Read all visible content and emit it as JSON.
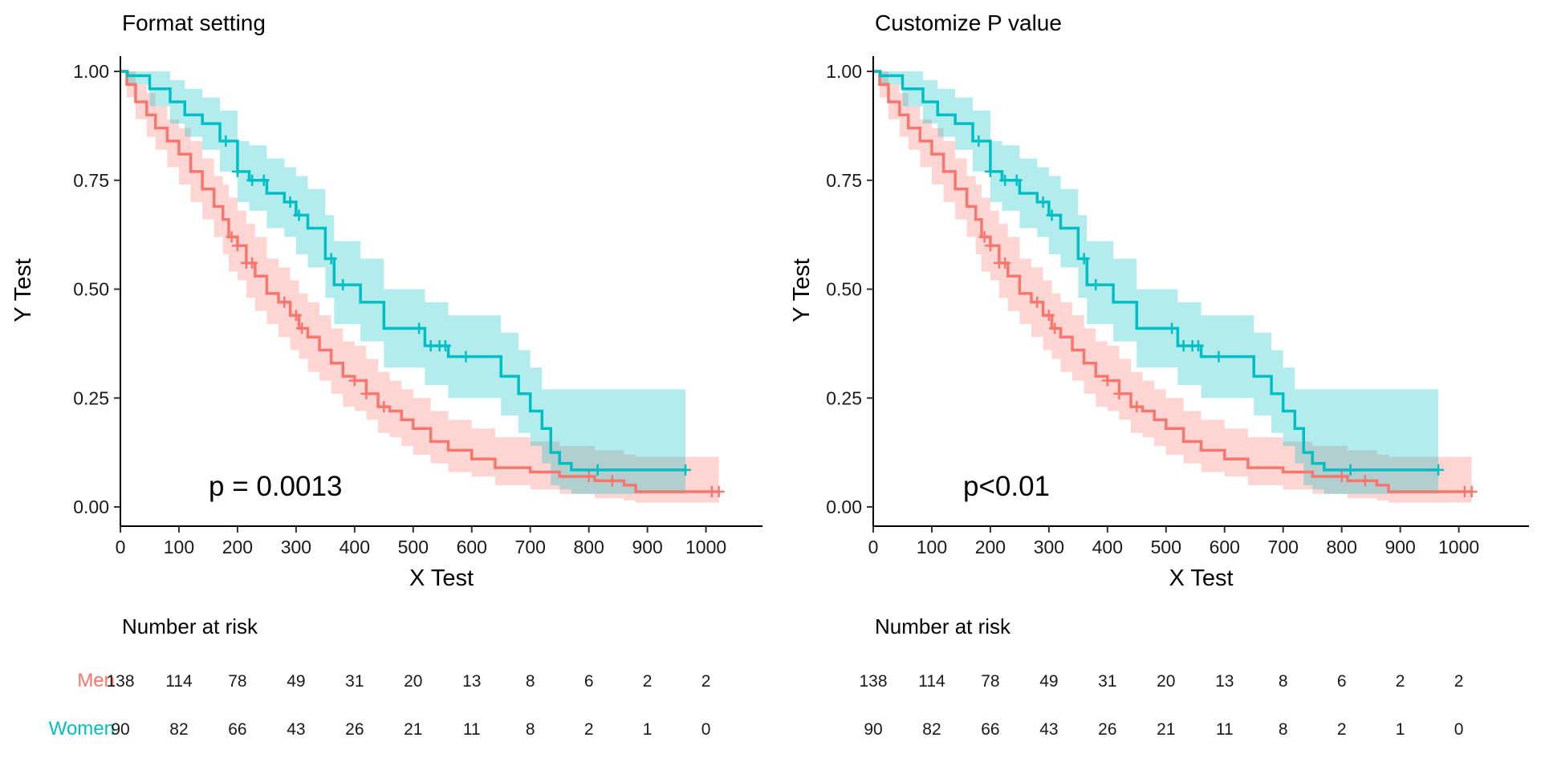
{
  "chart_data": [
    {
      "type": "line",
      "subtype": "kaplan-meier survival curve with confidence bands",
      "title": "Format setting",
      "xlabel": "X Test",
      "ylabel": "Y Test",
      "xlim": [
        -50,
        1050
      ],
      "ylim": [
        -0.05,
        1.05
      ],
      "x_ticks": [
        "0",
        "100",
        "200",
        "300",
        "400",
        "500",
        "600",
        "700",
        "800",
        "900",
        "1000"
      ],
      "y_ticks": [
        "0.00",
        "0.25",
        "0.50",
        "0.75",
        "1.00"
      ],
      "annotation": "p = 0.0013",
      "series": [
        {
          "name": "Men",
          "color": "#F8766D",
          "x": [
            0,
            11,
            26,
            45,
            60,
            80,
            100,
            120,
            140,
            160,
            175,
            185,
            200,
            215,
            230,
            250,
            270,
            290,
            305,
            320,
            340,
            360,
            380,
            400,
            420,
            440,
            460,
            480,
            500,
            530,
            560,
            600,
            640,
            700,
            750,
            810,
            860,
            880,
            1022
          ],
          "y": [
            1.0,
            0.97,
            0.93,
            0.9,
            0.87,
            0.84,
            0.81,
            0.77,
            0.73,
            0.69,
            0.66,
            0.62,
            0.6,
            0.56,
            0.53,
            0.49,
            0.47,
            0.44,
            0.41,
            0.39,
            0.36,
            0.33,
            0.3,
            0.29,
            0.26,
            0.23,
            0.22,
            0.2,
            0.18,
            0.15,
            0.13,
            0.11,
            0.09,
            0.08,
            0.07,
            0.06,
            0.05,
            0.035,
            0.035
          ],
          "lower": [
            1.0,
            0.94,
            0.89,
            0.85,
            0.82,
            0.78,
            0.74,
            0.7,
            0.66,
            0.62,
            0.58,
            0.54,
            0.52,
            0.48,
            0.45,
            0.42,
            0.39,
            0.36,
            0.34,
            0.31,
            0.29,
            0.26,
            0.23,
            0.22,
            0.2,
            0.17,
            0.16,
            0.14,
            0.12,
            0.1,
            0.08,
            0.07,
            0.05,
            0.04,
            0.03,
            0.02,
            0.015,
            0.01,
            0.01
          ],
          "upper": [
            1.0,
            1.0,
            0.97,
            0.95,
            0.92,
            0.89,
            0.87,
            0.84,
            0.8,
            0.76,
            0.74,
            0.71,
            0.68,
            0.65,
            0.62,
            0.57,
            0.55,
            0.52,
            0.49,
            0.47,
            0.44,
            0.41,
            0.38,
            0.37,
            0.34,
            0.31,
            0.29,
            0.27,
            0.25,
            0.22,
            0.2,
            0.18,
            0.16,
            0.15,
            0.14,
            0.13,
            0.12,
            0.115,
            0.115
          ],
          "censor_x": [
            190,
            200,
            215,
            225,
            280,
            300,
            310,
            400,
            420,
            450,
            800,
            840,
            1010,
            1022
          ]
        },
        {
          "name": "Women",
          "color": "#00BFC4",
          "x": [
            0,
            12,
            50,
            85,
            110,
            140,
            170,
            200,
            220,
            250,
            280,
            300,
            320,
            350,
            365,
            410,
            450,
            520,
            560,
            650,
            680,
            700,
            720,
            735,
            750,
            770,
            965
          ],
          "y": [
            1.0,
            0.99,
            0.96,
            0.93,
            0.9,
            0.88,
            0.84,
            0.77,
            0.75,
            0.72,
            0.7,
            0.67,
            0.64,
            0.57,
            0.51,
            0.47,
            0.41,
            0.37,
            0.345,
            0.3,
            0.26,
            0.22,
            0.18,
            0.125,
            0.1,
            0.085,
            0.085
          ],
          "lower": [
            1.0,
            0.97,
            0.92,
            0.88,
            0.85,
            0.82,
            0.77,
            0.7,
            0.68,
            0.64,
            0.62,
            0.58,
            0.55,
            0.48,
            0.42,
            0.38,
            0.32,
            0.28,
            0.25,
            0.21,
            0.17,
            0.14,
            0.1,
            0.05,
            0.04,
            0.03,
            0.03
          ],
          "upper": [
            1.0,
            1.0,
            1.0,
            0.98,
            0.96,
            0.94,
            0.91,
            0.84,
            0.83,
            0.8,
            0.78,
            0.76,
            0.73,
            0.67,
            0.61,
            0.57,
            0.5,
            0.47,
            0.44,
            0.4,
            0.36,
            0.32,
            0.27,
            0.27,
            0.27,
            0.27,
            0.27
          ],
          "censor_x": [
            180,
            200,
            225,
            245,
            290,
            305,
            360,
            380,
            510,
            530,
            545,
            555,
            590,
            815,
            965
          ]
        }
      ]
    },
    {
      "type": "line",
      "subtype": "kaplan-meier survival curve with confidence bands",
      "title": "Customize P value",
      "xlabel": "X Test",
      "ylabel": "Y Test",
      "xlim": [
        -50,
        1050
      ],
      "ylim": [
        -0.05,
        1.05
      ],
      "x_ticks": [
        "0",
        "100",
        "200",
        "300",
        "400",
        "500",
        "600",
        "700",
        "800",
        "900",
        "1000"
      ],
      "y_ticks": [
        "0.00",
        "0.25",
        "0.50",
        "0.75",
        "1.00"
      ],
      "annotation": "p<0.01",
      "same_data_as_chart": 0
    }
  ],
  "risk_tables": [
    {
      "title": "Number at risk",
      "groups": [
        {
          "name": "Men",
          "color": "#F8766D",
          "values": [
            "138",
            "114",
            "78",
            "49",
            "31",
            "20",
            "13",
            "8",
            "6",
            "2",
            "2"
          ]
        },
        {
          "name": "Women",
          "color": "#00BFC4",
          "values": [
            "90",
            "82",
            "66",
            "43",
            "26",
            "21",
            "11",
            "8",
            "2",
            "1",
            "0"
          ]
        }
      ]
    },
    {
      "title": "Number at risk",
      "groups": [
        {
          "name": "",
          "color": "#F8766D",
          "values": [
            "138",
            "114",
            "78",
            "49",
            "31",
            "20",
            "13",
            "8",
            "6",
            "2",
            "2"
          ]
        },
        {
          "name": "",
          "color": "#00BFC4",
          "values": [
            "90",
            "82",
            "66",
            "43",
            "26",
            "21",
            "11",
            "8",
            "2",
            "1",
            "0"
          ]
        }
      ]
    }
  ]
}
